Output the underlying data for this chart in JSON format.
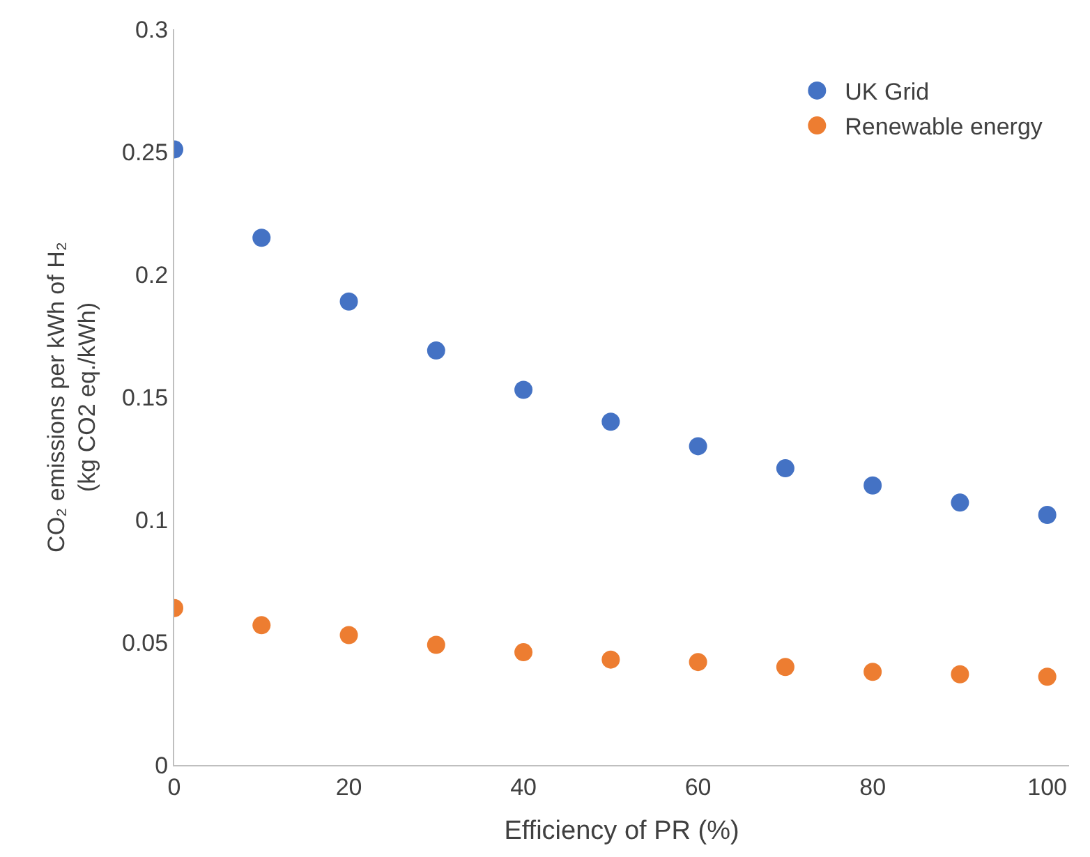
{
  "chart_data": {
    "type": "scatter",
    "xlabel": "Efficiency of PR (%)",
    "ylabel": "CO₂ emissions per kWh of H₂\n(kg CO2 eq./kWh)",
    "x": [
      0,
      10,
      20,
      30,
      40,
      50,
      60,
      70,
      80,
      90,
      100
    ],
    "series": [
      {
        "name": "UK Grid",
        "color": "#4472c4",
        "values": [
          0.251,
          0.215,
          0.189,
          0.169,
          0.153,
          0.14,
          0.13,
          0.121,
          0.114,
          0.107,
          0.102
        ]
      },
      {
        "name": "Renewable energy",
        "color": "#ed7d31",
        "values": [
          0.064,
          0.057,
          0.053,
          0.049,
          0.046,
          0.043,
          0.042,
          0.04,
          0.038,
          0.037,
          0.036
        ]
      }
    ],
    "xlim": [
      0,
      102.5
    ],
    "xticks": [
      0,
      20,
      40,
      60,
      80,
      100
    ],
    "ylim": [
      0,
      0.3
    ],
    "yticks": [
      0,
      0.05,
      0.1,
      0.15,
      0.2,
      0.25,
      0.3
    ],
    "legend": "top right",
    "marker": "circle"
  }
}
